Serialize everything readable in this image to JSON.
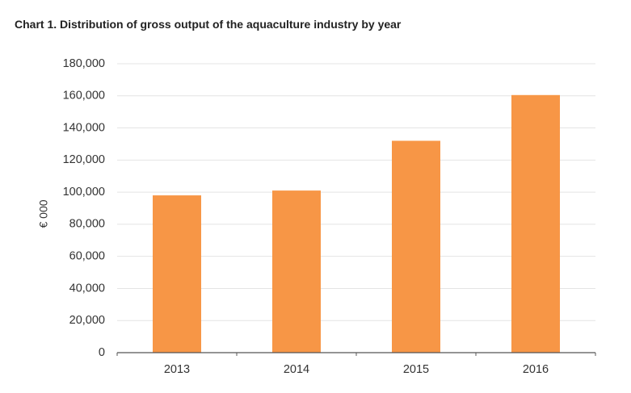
{
  "chart_data": {
    "type": "bar",
    "title": "Chart 1.  Distribution of gross output of the aquaculture industry by year",
    "xlabel": "",
    "ylabel": "€ 000",
    "categories": [
      "2013",
      "2014",
      "2015",
      "2016"
    ],
    "values": [
      98000,
      101000,
      132000,
      160500
    ],
    "ylim": [
      0,
      180000
    ],
    "yticks": [
      0,
      20000,
      40000,
      60000,
      80000,
      100000,
      120000,
      140000,
      160000,
      180000
    ],
    "ytick_labels": [
      "0",
      "20,000",
      "40,000",
      "60,000",
      "80,000",
      "100,000",
      "120,000",
      "140,000",
      "160,000",
      "180,000"
    ],
    "grid": true,
    "legend": "none",
    "colors": {
      "bar": "#F79646",
      "grid": "#E4E4E4",
      "axis": "#555555",
      "text": "#333333"
    }
  }
}
